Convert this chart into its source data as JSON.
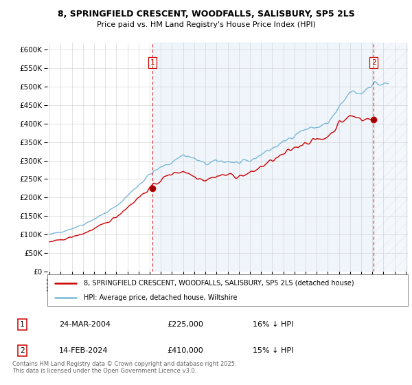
{
  "title_line1": "8, SPRINGFIELD CRESCENT, WOODFALLS, SALISBURY, SP5 2LS",
  "title_line2": "Price paid vs. HM Land Registry's House Price Index (HPI)",
  "legend_red": "8, SPRINGFIELD CRESCENT, WOODFALLS, SALISBURY, SP5 2LS (detached house)",
  "legend_blue": "HPI: Average price, detached house, Wiltshire",
  "annotation1_date": "24-MAR-2004",
  "annotation1_price": "£225,000",
  "annotation1_hpi": "16% ↓ HPI",
  "annotation2_date": "14-FEB-2024",
  "annotation2_price": "£410,000",
  "annotation2_hpi": "15% ↓ HPI",
  "footnote": "Contains HM Land Registry data © Crown copyright and database right 2025.\nThis data is licensed under the Open Government Licence v3.0.",
  "red_color": "#cc0000",
  "blue_color": "#7ab8d9",
  "vline_color": "#cc0000",
  "grid_color": "#cccccc",
  "shade_color": "#ddeeff",
  "hatch_color": "#ccddee",
  "background_color": "#ffffff",
  "ylim": [
    0,
    620000
  ],
  "yticks": [
    0,
    50000,
    100000,
    150000,
    200000,
    250000,
    300000,
    350000,
    400000,
    450000,
    500000,
    550000,
    600000
  ],
  "sale1_x": 2004.23,
  "sale1_y": 225000,
  "sale2_x": 2024.12,
  "sale2_y": 410000,
  "xmin": 1994.8,
  "xmax": 2027.2
}
